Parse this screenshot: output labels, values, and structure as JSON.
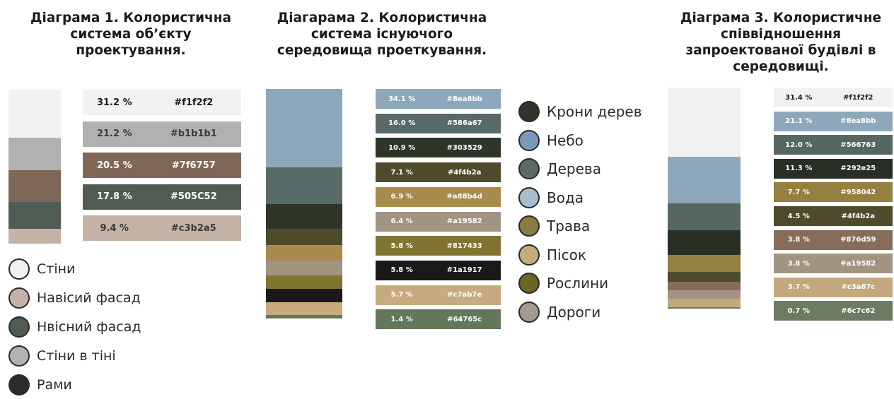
{
  "charts": [
    {
      "title": "Діаграма 1. Колористична\nсистема об’єкту\nпроектування.",
      "entries": [
        {
          "percent": "31.2 %",
          "hex": "#f1f2f2",
          "color": "#f1f2f2",
          "text": "#1b1b1b"
        },
        {
          "percent": "21.2 %",
          "hex": "#b1b1b1",
          "color": "#b1b1b1",
          "text": "#3a3a3a"
        },
        {
          "percent": "20.5 %",
          "hex": "#7f6757",
          "color": "#7f6757",
          "text": "#ffffff"
        },
        {
          "percent": "17.8 %",
          "hex": "#505C52",
          "color": "#505c52",
          "text": "#ffffff"
        },
        {
          "percent": "9.4 %",
          "hex": "#c3b2a5",
          "color": "#c3b2a5",
          "text": "#3a3a3a"
        }
      ],
      "legend": [
        {
          "label": "Стіни",
          "color": "#f1f2f2"
        },
        {
          "label": "Навісий фасад",
          "color": "#c3b2a5"
        },
        {
          "label": "Нвісний фасад",
          "color": "#505c52"
        },
        {
          "label": "Стіни в тіні",
          "color": "#b1b1b1"
        },
        {
          "label": "Рами",
          "color": "#2a2a2a"
        }
      ]
    },
    {
      "title": "Діагарама 2. Колористична\nсистема існуючого\nсередовища проеткування.",
      "entries": [
        {
          "percent": "34.1 %",
          "hex": "#8ea8bb",
          "color": "#8ea8bb",
          "text": "#ffffff"
        },
        {
          "percent": "16.0 %",
          "hex": "#586a67",
          "color": "#586a67",
          "text": "#ffffff"
        },
        {
          "percent": "10.9 %",
          "hex": "#303529",
          "color": "#303529",
          "text": "#ffffff"
        },
        {
          "percent": "7.1 %",
          "hex": "#4f4b2a",
          "color": "#4f4b2a",
          "text": "#ffffff"
        },
        {
          "percent": "6.9 %",
          "hex": "#a88b4d",
          "color": "#a88b4d",
          "text": "#ffffff"
        },
        {
          "percent": "6.4 %",
          "hex": "#a19582",
          "color": "#a19582",
          "text": "#ffffff"
        },
        {
          "percent": "5.8 %",
          "hex": "#817433",
          "color": "#817433",
          "text": "#ffffff"
        },
        {
          "percent": "5.8 %",
          "hex": "#1a1917",
          "color": "#1a1917",
          "text": "#ffffff"
        },
        {
          "percent": "5.7 %",
          "hex": "#c7ab7e",
          "color": "#c7ab7e",
          "text": "#ffffff"
        },
        {
          "percent": "1.4 %",
          "hex": "#64765c",
          "color": "#64765c",
          "text": "#ffffff"
        }
      ],
      "legend": [
        {
          "label": "Крони дерев",
          "color": "#303529"
        },
        {
          "label": "Небо",
          "color": "#7a9bb8"
        },
        {
          "label": "Дерева",
          "color": "#586a67"
        },
        {
          "label": "Вода",
          "color": "#a8bccb"
        },
        {
          "label": "Трава",
          "color": "#8c7a44"
        },
        {
          "label": "Пісок",
          "color": "#c7ab7e"
        },
        {
          "label": "Рослини",
          "color": "#6e6428"
        },
        {
          "label": "Дороги",
          "color": "#a19b90"
        }
      ]
    },
    {
      "title": "Діаграма 3. Колористичне\nспіввідношення\nзапроектованої будівлі в\nсередовищі.",
      "entries": [
        {
          "percent": "31.4 %",
          "hex": "#f1f2f2",
          "color": "#f1f2f2",
          "text": "#1b1b1b"
        },
        {
          "percent": "21.1 %",
          "hex": "#8ea8bb",
          "color": "#8ea8bb",
          "text": "#ffffff"
        },
        {
          "percent": "12.0 %",
          "hex": "#566763",
          "color": "#566763",
          "text": "#ffffff"
        },
        {
          "percent": "11.3 %",
          "hex": "#292e25",
          "color": "#292e25",
          "text": "#ffffff"
        },
        {
          "percent": "7.7 %",
          "hex": "#958042",
          "color": "#958042",
          "text": "#ffffff"
        },
        {
          "percent": "4.5 %",
          "hex": "#4f4b2a",
          "color": "#4f4b2a",
          "text": "#ffffff"
        },
        {
          "percent": "3.8 %",
          "hex": "#876d59",
          "color": "#876d59",
          "text": "#ffffff"
        },
        {
          "percent": "3.8 %",
          "hex": "#a19582",
          "color": "#a19582",
          "text": "#ffffff"
        },
        {
          "percent": "3.7 %",
          "hex": "#c3a87c",
          "color": "#c3a87c",
          "text": "#ffffff"
        },
        {
          "percent": "0.7 %",
          "hex": "#6c7c62",
          "color": "#6c7c62",
          "text": "#ffffff"
        }
      ]
    }
  ],
  "chart_data": [
    {
      "type": "bar",
      "stacked": true,
      "title": "Діаграма 1. Колористична система об’єкту проектування.",
      "categories": [
        "#f1f2f2",
        "#b1b1b1",
        "#7f6757",
        "#505C52",
        "#c3b2a5"
      ],
      "values": [
        31.2,
        21.2,
        20.5,
        17.8,
        9.4
      ]
    },
    {
      "type": "bar",
      "stacked": true,
      "title": "Діагарама 2. Колористична система існуючого середовища проеткування.",
      "categories": [
        "#8ea8bb",
        "#586a67",
        "#303529",
        "#4f4b2a",
        "#a88b4d",
        "#a19582",
        "#817433",
        "#1a1917",
        "#c7ab7e",
        "#64765c"
      ],
      "values": [
        34.1,
        16.0,
        10.9,
        7.1,
        6.9,
        6.4,
        5.8,
        5.8,
        5.7,
        1.4
      ]
    },
    {
      "type": "bar",
      "stacked": true,
      "title": "Діаграма 3. Колористичне співвідношення запроектованої будівлі в середовищі.",
      "categories": [
        "#f1f2f2",
        "#8ea8bb",
        "#566763",
        "#292e25",
        "#958042",
        "#4f4b2a",
        "#876d59",
        "#a19582",
        "#c3a87c",
        "#6c7c62"
      ],
      "values": [
        31.4,
        21.1,
        12.0,
        11.3,
        7.7,
        4.5,
        3.8,
        3.8,
        3.7,
        0.7
      ]
    }
  ]
}
